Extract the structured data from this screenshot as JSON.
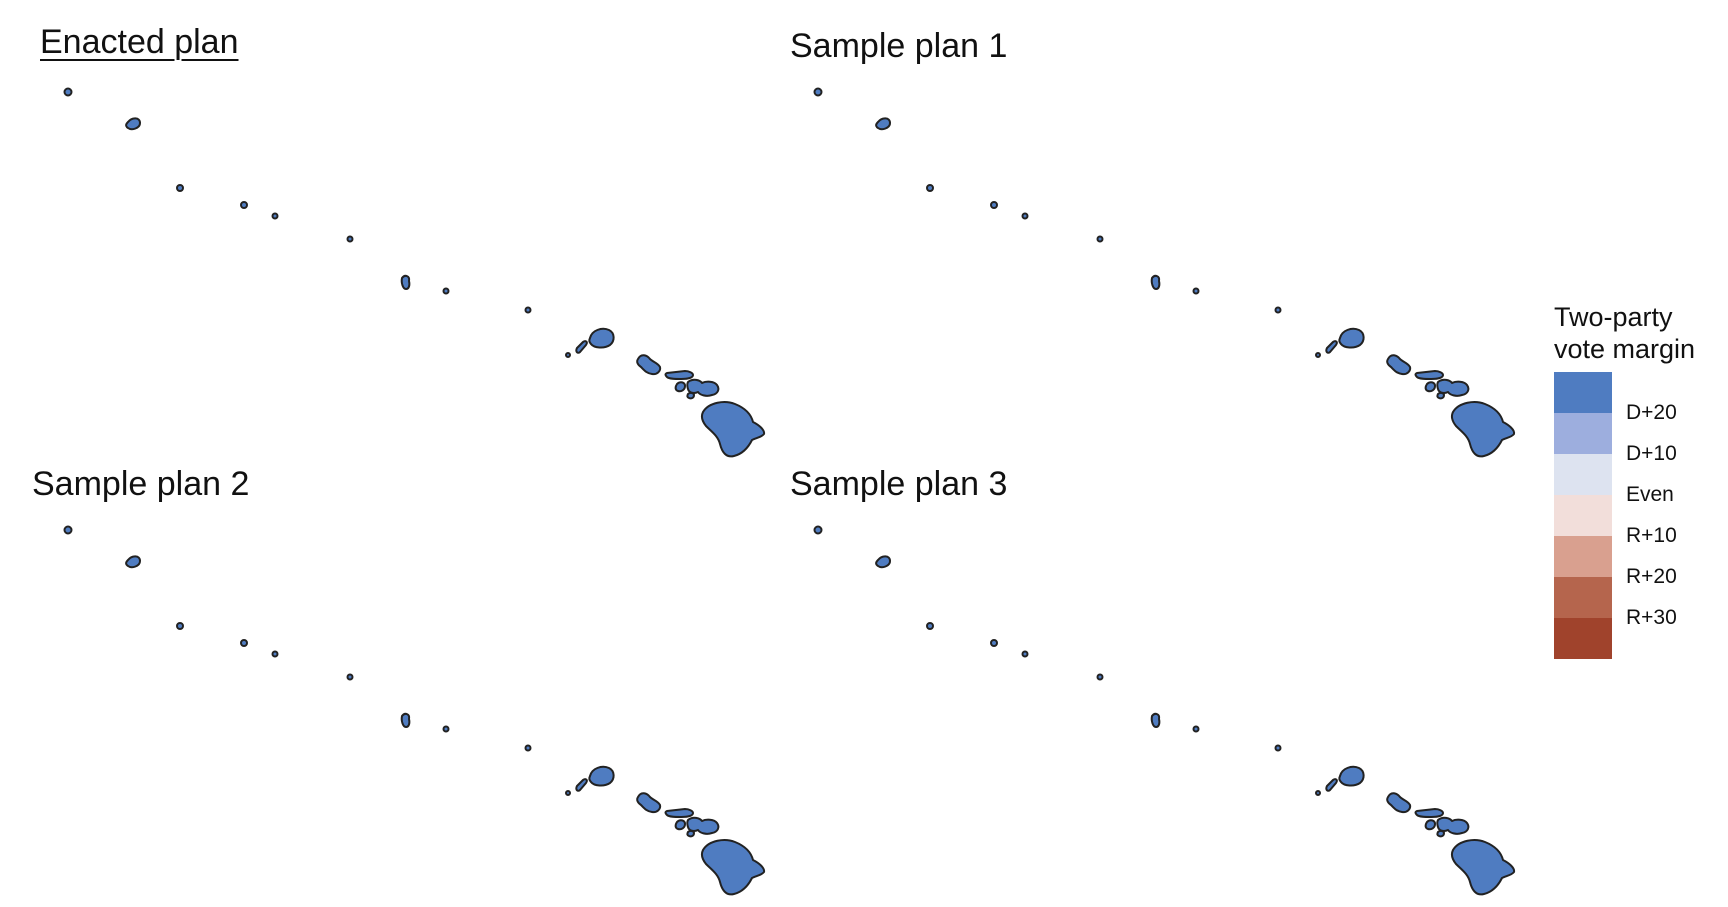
{
  "panels": [
    {
      "title": "Enacted plan",
      "highlighted": true
    },
    {
      "title": "Sample plan 1",
      "highlighted": false
    },
    {
      "title": "Sample plan 2",
      "highlighted": false
    },
    {
      "title": "Sample plan 3",
      "highlighted": false
    }
  ],
  "legend": {
    "title_line1": "Two-party",
    "title_line2": "vote margin",
    "colors": [
      "#4f7cc1",
      "#9daede",
      "#dde3f0",
      "#f2deda",
      "#d9a08f",
      "#b5654d",
      "#a0432c"
    ],
    "labels": [
      "D+20",
      "D+10",
      "Even",
      "R+10",
      "R+20",
      "R+30"
    ]
  },
  "map": {
    "district_fill": "#4f7cc1",
    "outline_color": "#222222"
  }
}
